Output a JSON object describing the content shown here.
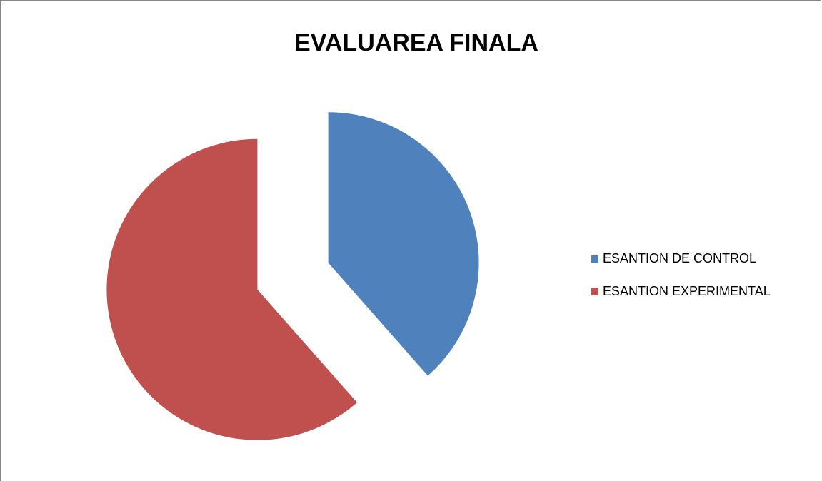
{
  "chart_data": {
    "type": "pie",
    "title": "EVALUAREA FINALA",
    "categories": [
      "ESANTION DE CONTROL",
      "ESANTION EXPERIMENTAL"
    ],
    "values": [
      38.5,
      61.5
    ],
    "colors": [
      "#4f81bd",
      "#c0504d"
    ],
    "exploded": true,
    "legend": "right"
  }
}
